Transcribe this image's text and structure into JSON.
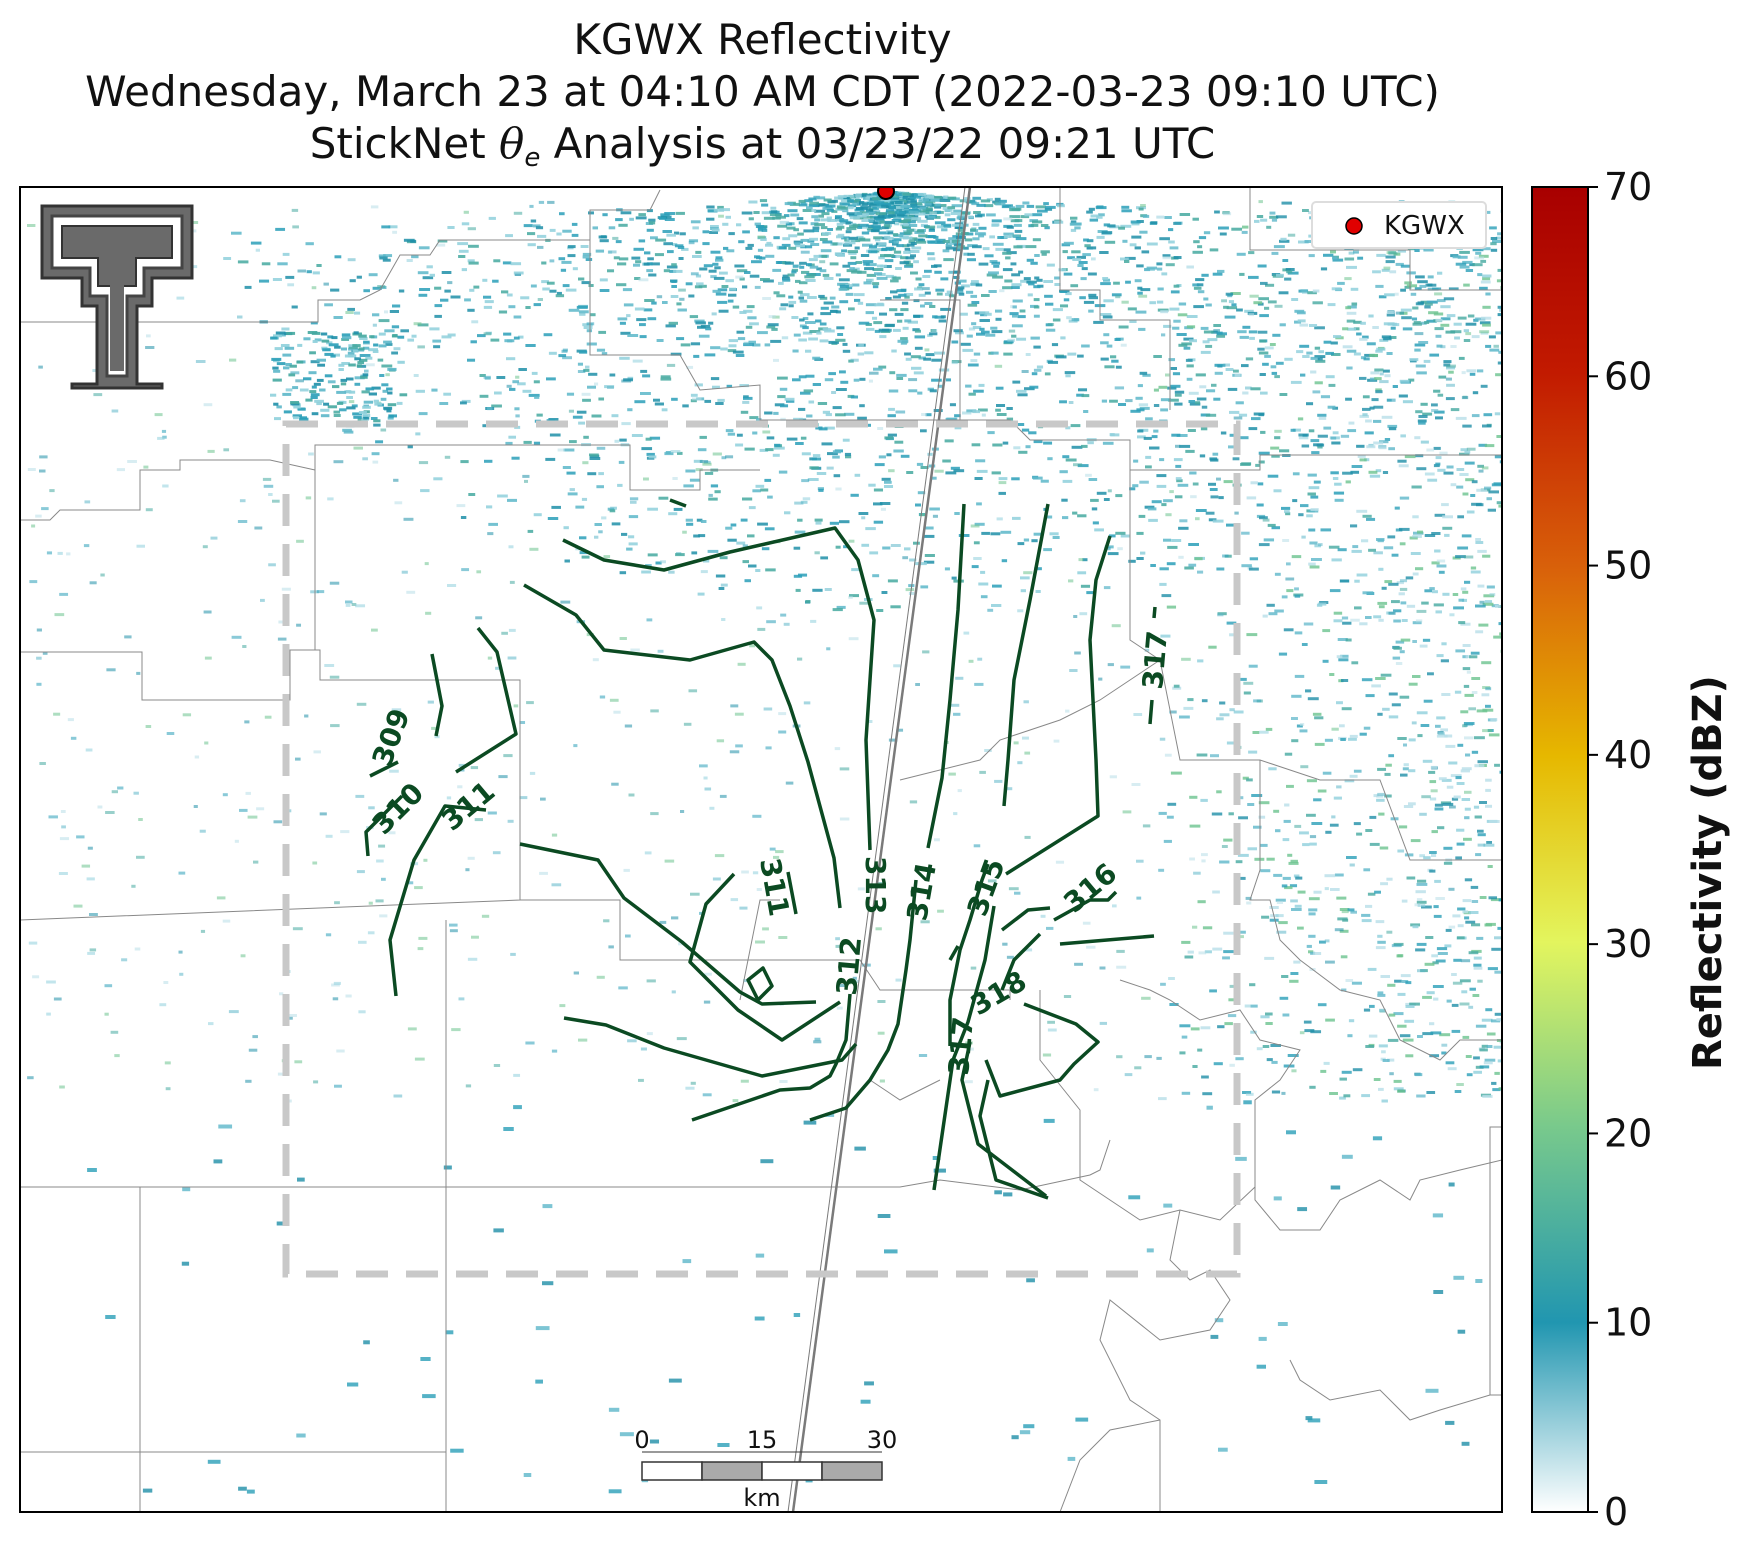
{
  "title": {
    "line1": "KGWX Reflectivity",
    "line2": "Wednesday, March 23 at 04:10 AM CDT (2022-03-23 09:10 UTC)",
    "line3_prefix": "StickNet ",
    "line3_symbol": "θ",
    "line3_subscript": "e",
    "line3_suffix": " Analysis at 03/23/22 09:21 UTC"
  },
  "legend": {
    "radar_label": "KGWX",
    "marker_color": "#e00000"
  },
  "colorbar": {
    "label": "Reflectivity (dBZ)",
    "ticks": [
      "0",
      "10",
      "20",
      "30",
      "40",
      "50",
      "60",
      "70"
    ],
    "min": 0,
    "max": 70,
    "colors": [
      "#ffffff",
      "#2196b0",
      "#78c98c",
      "#e3f55e",
      "#e6b800",
      "#d9620a",
      "#a80000"
    ]
  },
  "scale_bar": {
    "ticks": [
      "0",
      "15",
      "30"
    ],
    "unit": "km"
  },
  "contours": {
    "color": "#0b4a22",
    "labels": [
      "309",
      "310",
      "311",
      "311",
      "312",
      "313",
      "314",
      "315",
      "316",
      "317",
      "317",
      "318"
    ]
  },
  "colors": {
    "analysis_box": "#c8c8c8",
    "reflectivity_echo": "#2a9fb8",
    "borders": "#888888"
  },
  "logo": {
    "name": "Texas Tech Double T"
  }
}
